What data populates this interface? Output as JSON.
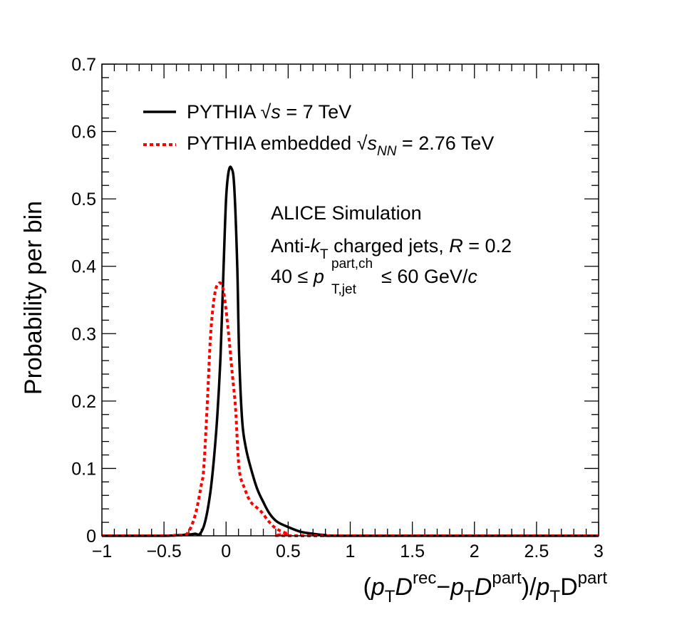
{
  "chart_data": {
    "type": "line",
    "title": "",
    "xlabel": {
      "parts": [
        "(",
        "p",
        "T",
        "D",
        "rec",
        "−",
        "p",
        "T",
        "D",
        "part",
        ")/",
        "p",
        "T",
        "D",
        "part"
      ]
    },
    "ylabel": "Probability per bin",
    "xlim": [
      -1,
      3
    ],
    "ylim": [
      0,
      0.7
    ],
    "xticks": [
      -1,
      -0.5,
      0,
      0.5,
      1,
      1.5,
      2,
      2.5,
      3
    ],
    "xtick_labels": [
      "−1",
      "−0.5",
      "0",
      "0.5",
      "1",
      "1.5",
      "2",
      "2.5",
      "3"
    ],
    "yticks": [
      0,
      0.1,
      0.2,
      0.3,
      0.4,
      0.5,
      0.6,
      0.7
    ],
    "ytick_labels": [
      "0",
      "0.1",
      "0.2",
      "0.3",
      "0.4",
      "0.5",
      "0.6",
      "0.7"
    ],
    "grid": false,
    "legend_placement": "top-left",
    "series": [
      {
        "name": "PYTHIA √s = 7 TeV",
        "legend": {
          "pre": "PYTHIA ",
          "sqrt": "s",
          "sub": "",
          "post": " = 7 TeV"
        },
        "color": "#000000",
        "style": "solid",
        "x": [
          -1,
          -0.5,
          -0.3,
          -0.25,
          -0.21,
          -0.17,
          -0.13,
          -0.1,
          -0.07,
          -0.044,
          -0.02,
          0.0,
          0.02,
          0.042,
          0.065,
          0.09,
          0.105,
          0.13,
          0.16,
          0.2,
          0.25,
          0.3,
          0.35,
          0.41,
          0.5,
          0.6,
          0.7,
          0.8,
          1.0,
          3.0
        ],
        "y": [
          0,
          0,
          0.002,
          0.003,
          0.003,
          0.02,
          0.06,
          0.11,
          0.18,
          0.27,
          0.4,
          0.5,
          0.54,
          0.546,
          0.52,
          0.4,
          0.27,
          0.17,
          0.13,
          0.1,
          0.07,
          0.05,
          0.033,
          0.021,
          0.013,
          0.006,
          0.003,
          0.001,
          0,
          0
        ]
      },
      {
        "name": "PYTHIA embedded √s_NN = 2.76 TeV",
        "legend": {
          "pre": "PYTHIA embedded ",
          "sqrt": "s",
          "sub": "NN",
          "post": " = 2.76 TeV"
        },
        "color": "#ff0000",
        "style": "dotted",
        "x": [
          -1,
          -0.5,
          -0.4,
          -0.315,
          -0.25,
          -0.2,
          -0.18,
          -0.153,
          -0.124,
          -0.09,
          -0.057,
          -0.03,
          -0.01,
          0.02,
          0.05,
          0.076,
          0.105,
          0.15,
          0.2,
          0.277,
          0.35,
          0.41,
          0.5,
          0.6,
          3.0
        ],
        "y": [
          0,
          0,
          0.001,
          0.003,
          0.03,
          0.075,
          0.1,
          0.19,
          0.3,
          0.36,
          0.375,
          0.37,
          0.35,
          0.3,
          0.24,
          0.19,
          0.1,
          0.07,
          0.05,
          0.037,
          0.02,
          0.01,
          0.003,
          0,
          0
        ]
      }
    ],
    "annotations": [
      {
        "text": "ALICE Simulation"
      },
      {
        "pre": "Anti-",
        "k": "k",
        "ksub": "T",
        "mid": " charged jets, ",
        "r": "R",
        "post": " = 0.2"
      },
      {
        "pre": "40 ≤ ",
        "p": "p",
        "sup": "part,ch",
        "sub": "T,jet",
        "post": " ≤ 60 GeV/",
        "c": "c"
      }
    ]
  }
}
